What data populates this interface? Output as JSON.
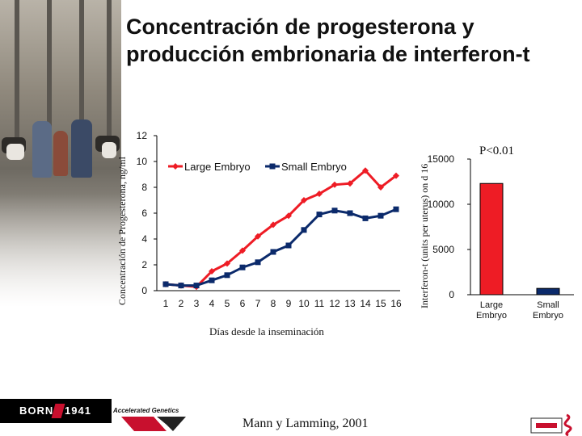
{
  "slide": {
    "title_lines": [
      "Concentración de progesterona y",
      "producción embrionaria de interferon-t"
    ],
    "citation": "Mann y Lamming, 2001",
    "logos": {
      "born_left": "BORN",
      "born_right": "1941",
      "accelerated_genetics": "Accelerated Genetics"
    }
  },
  "chart_data": [
    {
      "type": "line",
      "ylabel": "Concentración de Progesterona, ng/ml",
      "xlabel": "Días desde la inseminación",
      "x": [
        1,
        2,
        3,
        4,
        5,
        6,
        7,
        8,
        9,
        10,
        11,
        12,
        13,
        14,
        15,
        16
      ],
      "ylim": [
        0,
        12
      ],
      "yticks": [
        0,
        2,
        4,
        6,
        8,
        10,
        12
      ],
      "legend_position": "top",
      "series": [
        {
          "name": "Large Embryo",
          "color": "#ee1c25",
          "marker": "diamond",
          "values": [
            0.5,
            0.4,
            0.3,
            1.5,
            2.1,
            3.1,
            4.2,
            5.1,
            5.8,
            7.0,
            7.5,
            8.2,
            8.3,
            9.3,
            8.0,
            8.9
          ]
        },
        {
          "name": "Small Embryo",
          "color": "#0b2a6b",
          "marker": "square",
          "values": [
            0.5,
            0.4,
            0.4,
            0.8,
            1.2,
            1.8,
            2.2,
            3.0,
            3.5,
            4.7,
            5.9,
            6.2,
            6.0,
            5.6,
            5.8,
            6.3
          ]
        }
      ]
    },
    {
      "type": "bar",
      "ylabel": "Interferon-t (units per uterus) on d 16",
      "categories": [
        "Large Embryo",
        "Small Embryo"
      ],
      "values": [
        12300,
        700
      ],
      "colors": [
        "#ee1c25",
        "#0b2a6b"
      ],
      "ylim": [
        0,
        15000
      ],
      "yticks": [
        0,
        5000,
        10000,
        15000
      ],
      "annotation": "P<0.01"
    }
  ]
}
